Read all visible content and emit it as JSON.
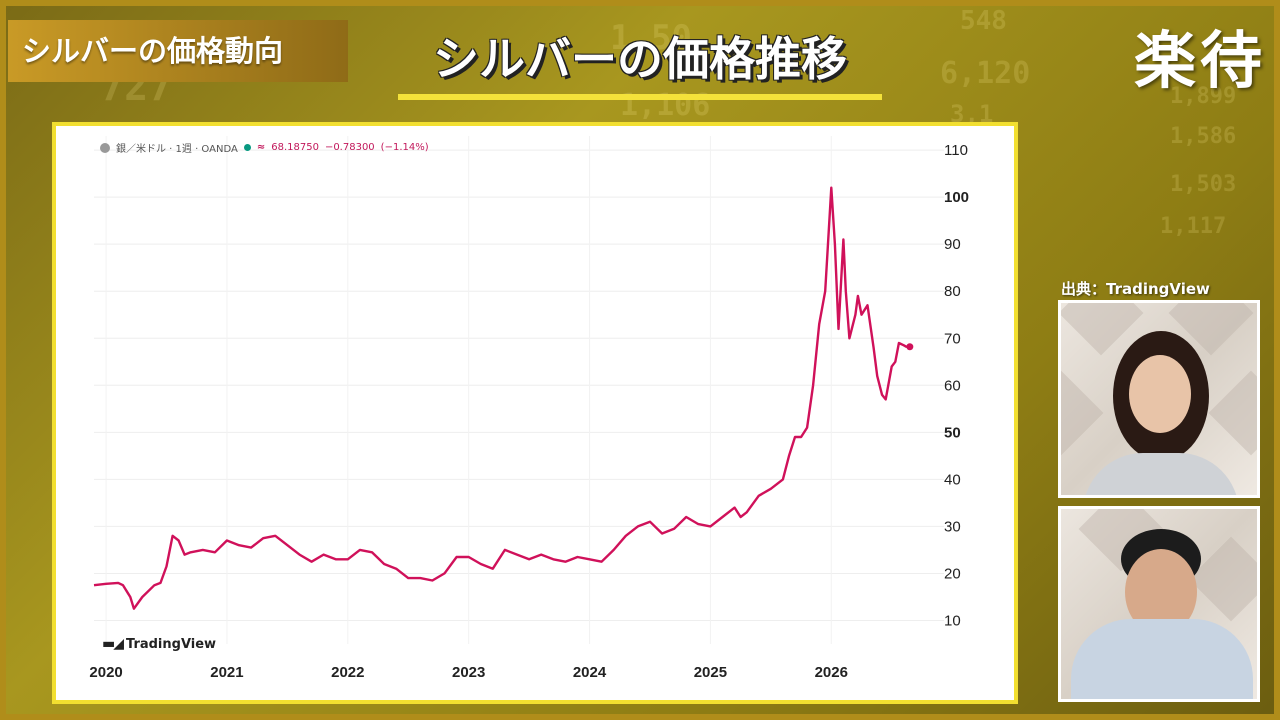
{
  "topic_badge": "シルバーの価格動向",
  "main_title": "シルバーの価格推移",
  "brand_logo": "楽待",
  "source_label": "出典：TradingView",
  "legend": {
    "symbol": "銀／米ドル · 1週 · OANDA",
    "last_price": "68.18750",
    "change": "−0.78300",
    "change_pct": "(−1.14%)"
  },
  "tradingview_label": "TradingView",
  "background_tickers": [
    "1,50",
    "548",
    "6,120",
    "3,1",
    "1,899",
    "1,586",
    "1,503",
    "1,106",
    "1,117",
    "727"
  ],
  "colors": {
    "line": "#d0115a",
    "accent_yellow": "#f2df30",
    "badge_gold": "#c99a26"
  },
  "chart_data": {
    "type": "line",
    "title": "シルバーの価格推移",
    "series_name": "銀／米ドル",
    "x_ticks": [
      "2020",
      "2021",
      "2022",
      "2023",
      "2024",
      "2025",
      "2026"
    ],
    "y_ticks": [
      10,
      20,
      30,
      40,
      50,
      60,
      70,
      80,
      90,
      100,
      110
    ],
    "y_ticks_bold": [
      50,
      100
    ],
    "ylim": [
      5,
      113
    ],
    "xlim": [
      2019.9,
      2026.85
    ],
    "grid": true,
    "x": [
      2019.9,
      2020.0,
      2020.1,
      2020.14,
      2020.2,
      2020.23,
      2020.3,
      2020.4,
      2020.45,
      2020.5,
      2020.55,
      2020.6,
      2020.65,
      2020.7,
      2020.8,
      2020.9,
      2021.0,
      2021.1,
      2021.2,
      2021.3,
      2021.4,
      2021.5,
      2021.6,
      2021.7,
      2021.8,
      2021.9,
      2022.0,
      2022.1,
      2022.2,
      2022.3,
      2022.4,
      2022.5,
      2022.6,
      2022.7,
      2022.8,
      2022.9,
      2023.0,
      2023.1,
      2023.2,
      2023.3,
      2023.4,
      2023.5,
      2023.6,
      2023.7,
      2023.8,
      2023.9,
      2024.0,
      2024.1,
      2024.2,
      2024.3,
      2024.4,
      2024.5,
      2024.6,
      2024.7,
      2024.8,
      2024.9,
      2025.0,
      2025.1,
      2025.2,
      2025.25,
      2025.3,
      2025.4,
      2025.5,
      2025.6,
      2025.65,
      2025.7,
      2025.75,
      2025.8,
      2025.85,
      2025.9,
      2025.95,
      2026.0,
      2026.03,
      2026.06,
      2026.1,
      2026.12,
      2026.15,
      2026.2,
      2026.22,
      2026.25,
      2026.3,
      2026.35,
      2026.38,
      2026.42,
      2026.45,
      2026.5,
      2026.53,
      2026.56,
      2026.6,
      2026.62,
      2026.65
    ],
    "y": [
      17.5,
      17.8,
      18.0,
      17.5,
      15.0,
      12.5,
      15.0,
      17.5,
      18.0,
      21.5,
      28.0,
      27.0,
      24.0,
      24.5,
      25.0,
      24.5,
      27.0,
      26.0,
      25.5,
      27.5,
      28.0,
      26.0,
      24.0,
      22.5,
      24.0,
      23.0,
      23.0,
      25.0,
      24.5,
      22.0,
      21.0,
      19.0,
      19.0,
      18.5,
      20.0,
      23.5,
      23.5,
      22.0,
      21.0,
      25.0,
      24.0,
      23.0,
      24.0,
      23.0,
      22.5,
      23.5,
      23.0,
      22.5,
      25.0,
      28.0,
      30.0,
      31.0,
      28.5,
      29.5,
      32.0,
      30.5,
      30.0,
      32.0,
      34.0,
      32.0,
      33.0,
      36.5,
      38.0,
      40.0,
      45.0,
      49.0,
      49.0,
      51.0,
      60.0,
      73.0,
      80.0,
      102.0,
      90.0,
      72.0,
      91.0,
      80.0,
      70.0,
      75.0,
      79.0,
      75.0,
      77.0,
      68.0,
      62.0,
      58.0,
      57.0,
      64.0,
      65.0,
      69.0,
      68.5,
      68.2,
      68.19
    ]
  }
}
